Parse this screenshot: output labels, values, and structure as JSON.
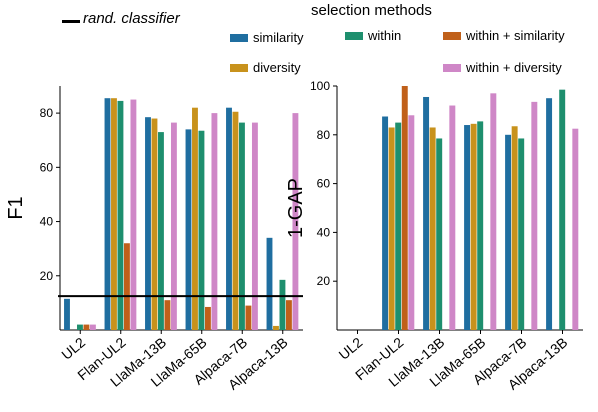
{
  "legend": {
    "title": "selection methods",
    "rand_label": "rand. classifier"
  },
  "chart_data": [
    {
      "type": "bar",
      "ylabel": "F1",
      "xlabel": "",
      "ylim": [
        0,
        90
      ],
      "yticks": [
        20,
        40,
        60,
        80
      ],
      "grid": false,
      "legend_placement": "top",
      "reference_line": {
        "name": "rand. classifier",
        "y": 12.5,
        "color": "#000000"
      },
      "categories": [
        "UL2",
        "Flan-UL2",
        "LlaMa-13B",
        "LlaMa-65B",
        "Alpaca-7B",
        "Alpaca-13B"
      ],
      "series": [
        {
          "name": "similarity",
          "color": "#1f6ea0",
          "values": [
            11.5,
            85.5,
            78.5,
            74,
            82,
            34
          ]
        },
        {
          "name": "diversity",
          "color": "#c8921c",
          "values": [
            0,
            85.5,
            78,
            82,
            80.5,
            1.5
          ]
        },
        {
          "name": "within",
          "color": "#1e8f6e",
          "values": [
            2,
            84.5,
            73,
            73.5,
            76.5,
            18.5
          ]
        },
        {
          "name": "within + similarity",
          "color": "#c0601a",
          "values": [
            2,
            32,
            11,
            8.5,
            9,
            11
          ]
        },
        {
          "name": "within + diversity",
          "color": "#cf87c7",
          "values": [
            2,
            85,
            76.5,
            80,
            76.5,
            80
          ]
        }
      ]
    },
    {
      "type": "bar",
      "ylabel": "1-GAP",
      "xlabel": "",
      "ylim": [
        0,
        100
      ],
      "yticks": [
        20,
        40,
        60,
        80,
        100
      ],
      "grid": false,
      "categories": [
        "UL2",
        "Flan-UL2",
        "LlaMa-13B",
        "LlaMa-65B",
        "Alpaca-7B",
        "Alpaca-13B"
      ],
      "series": [
        {
          "name": "similarity",
          "color": "#1f6ea0",
          "values": [
            0,
            87.5,
            95.5,
            84,
            80,
            95
          ]
        },
        {
          "name": "diversity",
          "color": "#c8921c",
          "values": [
            0,
            83,
            83,
            84.5,
            83.5,
            0
          ]
        },
        {
          "name": "within",
          "color": "#1e8f6e",
          "values": [
            0,
            85,
            78.5,
            85.5,
            78.5,
            98.5
          ]
        },
        {
          "name": "within + similarity",
          "color": "#c0601a",
          "values": [
            0,
            100,
            0,
            0,
            0,
            0
          ]
        },
        {
          "name": "within + diversity",
          "color": "#cf87c7",
          "values": [
            0,
            88,
            92,
            97,
            93.5,
            82.5
          ]
        }
      ]
    }
  ]
}
